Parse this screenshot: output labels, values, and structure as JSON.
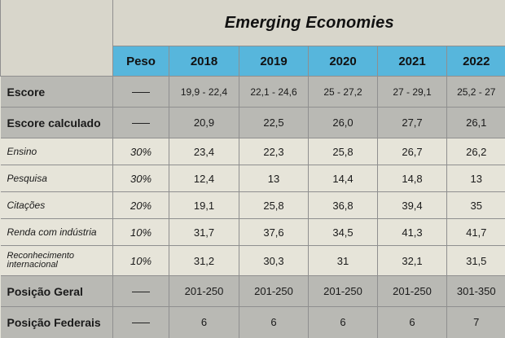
{
  "title": "Emerging Economies",
  "columns": {
    "peso": "Peso",
    "years": [
      "2018",
      "2019",
      "2020",
      "2021",
      "2022"
    ]
  },
  "rows": [
    {
      "label": "Escore",
      "peso": "",
      "values": [
        "19,9 - 22,4",
        "22,1 - 24,6",
        "25 - 27,2",
        "27 - 29,1",
        "25,2 - 27"
      ]
    },
    {
      "label": "Escore calculado",
      "peso": "",
      "values": [
        "20,9",
        "22,5",
        "26,0",
        "27,7",
        "26,1"
      ]
    },
    {
      "label": "Ensino",
      "peso": "30%",
      "values": [
        "23,4",
        "22,3",
        "25,8",
        "26,7",
        "26,2"
      ]
    },
    {
      "label": "Pesquisa",
      "peso": "30%",
      "values": [
        "12,4",
        "13",
        "14,4",
        "14,8",
        "13"
      ]
    },
    {
      "label": "Citações",
      "peso": "20%",
      "values": [
        "19,1",
        "25,8",
        "36,8",
        "39,4",
        "35"
      ]
    },
    {
      "label": "Renda com indústria",
      "peso": "10%",
      "values": [
        "31,7",
        "37,6",
        "34,5",
        "41,3",
        "41,7"
      ]
    },
    {
      "label": "Reconhecimento internacional",
      "peso": "10%",
      "values": [
        "31,2",
        "30,3",
        "31",
        "32,1",
        "31,5"
      ]
    },
    {
      "label": "Posição Geral",
      "peso": "",
      "values": [
        "201-250",
        "201-250",
        "201-250",
        "201-250",
        "301-350"
      ]
    },
    {
      "label": "Posição Federais",
      "peso": "",
      "values": [
        "6",
        "6",
        "6",
        "6",
        "7"
      ]
    }
  ]
}
